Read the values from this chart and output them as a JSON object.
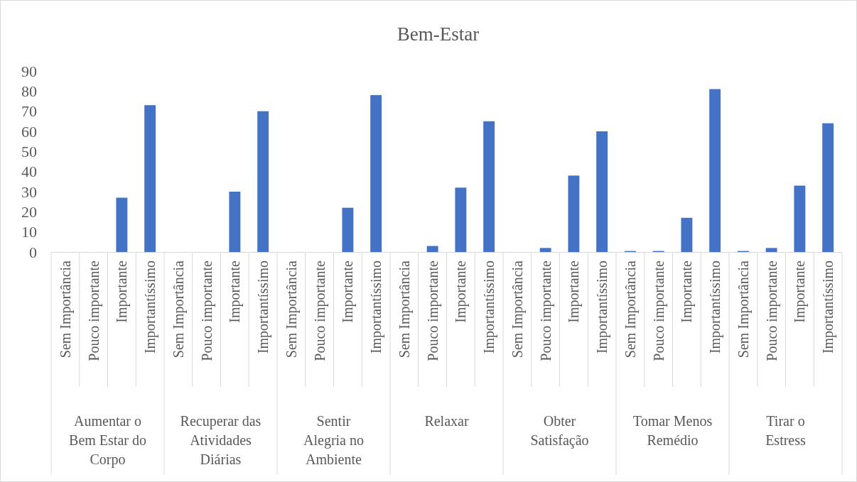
{
  "chart_data": {
    "type": "bar",
    "title": "Bem-Estar",
    "categories": [
      "Sem Importância",
      "Pouco importante",
      "Importante",
      "Importantíssimo",
      "Sem Importância",
      "Pouco importante",
      "Importante",
      "Importantíssimo",
      "Sem Importância",
      "Pouco importante",
      "Importante",
      "Importantíssimo",
      "Sem Importância",
      "Pouco importante",
      "Importante",
      "Importantíssimo",
      "Sem Importância",
      "Pouco importante",
      "Importante",
      "Importantíssimo",
      "Sem Importância",
      "Pouco importante",
      "Importante",
      "Importantíssimo",
      "Sem Importância",
      "Pouco importante",
      "Importante",
      "Importantíssimo"
    ],
    "values": [
      0,
      0,
      27,
      73,
      0,
      0,
      30,
      70,
      0,
      0,
      22,
      78,
      0,
      3,
      32,
      65,
      0,
      2,
      38,
      60,
      0.5,
      0.5,
      17,
      81,
      0.5,
      2,
      33,
      64
    ],
    "color": "#4472c4",
    "annotations": [
      "Aumentar o Bem Estar do Corpo",
      "Recuperar das Atividades Diárias",
      "Sentir Alegria no Ambiente",
      "Relaxar",
      "Obter Satisfação",
      "Tomar Menos Remédio",
      "Tirar o Estress"
    ],
    "ylim": [
      0,
      90
    ],
    "yticks": [
      0,
      10,
      20,
      30,
      40,
      50,
      60,
      70,
      80,
      90
    ],
    "grid": false
  }
}
